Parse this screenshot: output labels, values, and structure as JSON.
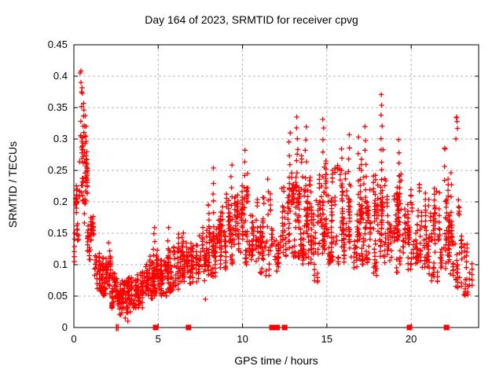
{
  "chart_data": {
    "type": "scatter",
    "title": "Day 164 of 2023, SRMTID for receiver cpvg",
    "xlabel": "GPS time / hours",
    "ylabel": "SRMTID / TECUs",
    "xlim": [
      0,
      24
    ],
    "ylim": [
      0,
      0.45
    ],
    "xticks": [
      "0",
      "5",
      "10",
      "15",
      "20"
    ],
    "yticks": [
      "0",
      "0.05",
      "0.1",
      "0.15",
      "0.2",
      "0.25",
      "0.3",
      "0.35",
      "0.4",
      "0.45"
    ],
    "grid": {
      "show": true,
      "color": "#b3b3b3",
      "dash": "3 3"
    },
    "border_color": "#000000",
    "background": "#ffffff",
    "legend": "none",
    "marker": {
      "shape": "plus",
      "color": "#ff0000",
      "size": 6.5,
      "stroke_width": 1.3
    },
    "seed": 20230614,
    "density_bins": [
      [
        0.02,
        0.3,
        30,
        0.09,
        0.26,
        0.16
      ],
      [
        0.3,
        0.8,
        40,
        0.15,
        0.33,
        0.24
      ],
      [
        0.8,
        1.2,
        40,
        0.1,
        0.21,
        0.15
      ],
      [
        1.2,
        1.7,
        50,
        0.055,
        0.13,
        0.085
      ],
      [
        1.7,
        2.2,
        60,
        0.045,
        0.115,
        0.075
      ],
      [
        2.2,
        2.7,
        55,
        0.03,
        0.09,
        0.055
      ],
      [
        2.7,
        3.2,
        55,
        0.02,
        0.075,
        0.05
      ],
      [
        3.2,
        3.7,
        55,
        0.03,
        0.08,
        0.05
      ],
      [
        3.7,
        4.2,
        50,
        0.03,
        0.09,
        0.055
      ],
      [
        4.2,
        4.7,
        50,
        0.04,
        0.115,
        0.07
      ],
      [
        4.7,
        5.1,
        45,
        0.05,
        0.13,
        0.08
      ],
      [
        5.1,
        5.6,
        45,
        0.05,
        0.12,
        0.08
      ],
      [
        5.6,
        6.1,
        45,
        0.055,
        0.13,
        0.085
      ],
      [
        6.1,
        6.7,
        55,
        0.06,
        0.15,
        0.1
      ],
      [
        6.7,
        7.3,
        50,
        0.07,
        0.135,
        0.1
      ],
      [
        7.3,
        7.9,
        50,
        0.06,
        0.16,
        0.11
      ],
      [
        7.9,
        8.4,
        55,
        0.08,
        0.2,
        0.13
      ],
      [
        8.4,
        9.0,
        55,
        0.09,
        0.21,
        0.14
      ],
      [
        9.0,
        9.6,
        55,
        0.1,
        0.24,
        0.15
      ],
      [
        9.6,
        10.2,
        55,
        0.1,
        0.25,
        0.16
      ],
      [
        10.2,
        11.0,
        65,
        0.1,
        0.23,
        0.155
      ],
      [
        11.0,
        11.7,
        50,
        0.07,
        0.24,
        0.14
      ],
      [
        11.7,
        12.3,
        35,
        0.06,
        0.22,
        0.13
      ],
      [
        12.3,
        13.0,
        55,
        0.09,
        0.28,
        0.17
      ],
      [
        13.0,
        13.5,
        55,
        0.11,
        0.3,
        0.19
      ],
      [
        13.5,
        14.0,
        55,
        0.1,
        0.27,
        0.17
      ],
      [
        14.0,
        14.5,
        50,
        0.07,
        0.24,
        0.15
      ],
      [
        14.5,
        15.0,
        55,
        0.11,
        0.3,
        0.18
      ],
      [
        15.0,
        15.7,
        60,
        0.1,
        0.26,
        0.17
      ],
      [
        15.7,
        16.5,
        65,
        0.1,
        0.27,
        0.17
      ],
      [
        16.5,
        17.1,
        55,
        0.09,
        0.27,
        0.16
      ],
      [
        17.1,
        17.7,
        50,
        0.1,
        0.28,
        0.17
      ],
      [
        17.7,
        18.2,
        50,
        0.08,
        0.26,
        0.16
      ],
      [
        18.2,
        18.6,
        40,
        0.1,
        0.3,
        0.18
      ],
      [
        18.6,
        19.2,
        50,
        0.08,
        0.24,
        0.15
      ],
      [
        19.2,
        19.7,
        45,
        0.1,
        0.26,
        0.16
      ],
      [
        19.7,
        20.4,
        55,
        0.08,
        0.22,
        0.15
      ],
      [
        20.4,
        21.1,
        60,
        0.08,
        0.23,
        0.15
      ],
      [
        21.1,
        21.8,
        55,
        0.07,
        0.23,
        0.14
      ],
      [
        21.8,
        22.4,
        50,
        0.06,
        0.24,
        0.14
      ],
      [
        22.4,
        22.9,
        40,
        0.06,
        0.22,
        0.13
      ],
      [
        22.9,
        23.4,
        30,
        0.05,
        0.17,
        0.1
      ],
      [
        23.4,
        23.7,
        8,
        0.05,
        0.12,
        0.08
      ]
    ],
    "spike_columns": [
      [
        0.45,
        0.28,
        0.405,
        6
      ],
      [
        0.55,
        0.29,
        0.37,
        8
      ],
      [
        0.65,
        0.17,
        0.335,
        12
      ],
      [
        0.75,
        0.2,
        0.32,
        10
      ],
      [
        2.1,
        0.07,
        0.135,
        5
      ],
      [
        4.75,
        0.08,
        0.16,
        8
      ],
      [
        5.6,
        0.08,
        0.155,
        6
      ],
      [
        6.45,
        0.11,
        0.15,
        10
      ],
      [
        8.3,
        0.13,
        0.25,
        8
      ],
      [
        9.35,
        0.14,
        0.26,
        8
      ],
      [
        10.15,
        0.15,
        0.28,
        8
      ],
      [
        11.5,
        0.12,
        0.24,
        7
      ],
      [
        12.8,
        0.15,
        0.31,
        10
      ],
      [
        13.25,
        0.17,
        0.335,
        10
      ],
      [
        13.75,
        0.16,
        0.32,
        9
      ],
      [
        14.8,
        0.16,
        0.335,
        10
      ],
      [
        15.9,
        0.15,
        0.285,
        8
      ],
      [
        16.3,
        0.16,
        0.31,
        8
      ],
      [
        16.9,
        0.15,
        0.3,
        8
      ],
      [
        17.3,
        0.16,
        0.32,
        9
      ],
      [
        18.25,
        0.18,
        0.37,
        12
      ],
      [
        19.3,
        0.15,
        0.3,
        9
      ],
      [
        22.0,
        0.15,
        0.285,
        6
      ],
      [
        22.4,
        0.14,
        0.25,
        6
      ],
      [
        22.7,
        0.3,
        0.335,
        3
      ]
    ],
    "outliers": [
      [
        0.37,
        0.405
      ],
      [
        0.42,
        0.39
      ],
      [
        0.45,
        0.375
      ],
      [
        2.78,
        0.02
      ],
      [
        3.05,
        0.015
      ],
      [
        3.2,
        0.01
      ],
      [
        3.35,
        0.025
      ],
      [
        7.8,
        0.045
      ],
      [
        10.3,
        0.245
      ],
      [
        22.0,
        0.284
      ],
      [
        22.68,
        0.334
      ],
      [
        22.72,
        0.328
      ]
    ],
    "zero_squares": [
      4.85,
      6.8,
      11.75,
      12.05,
      12.5,
      19.9,
      22.1
    ],
    "zero_bars": [
      2.52,
      2.62
    ]
  }
}
